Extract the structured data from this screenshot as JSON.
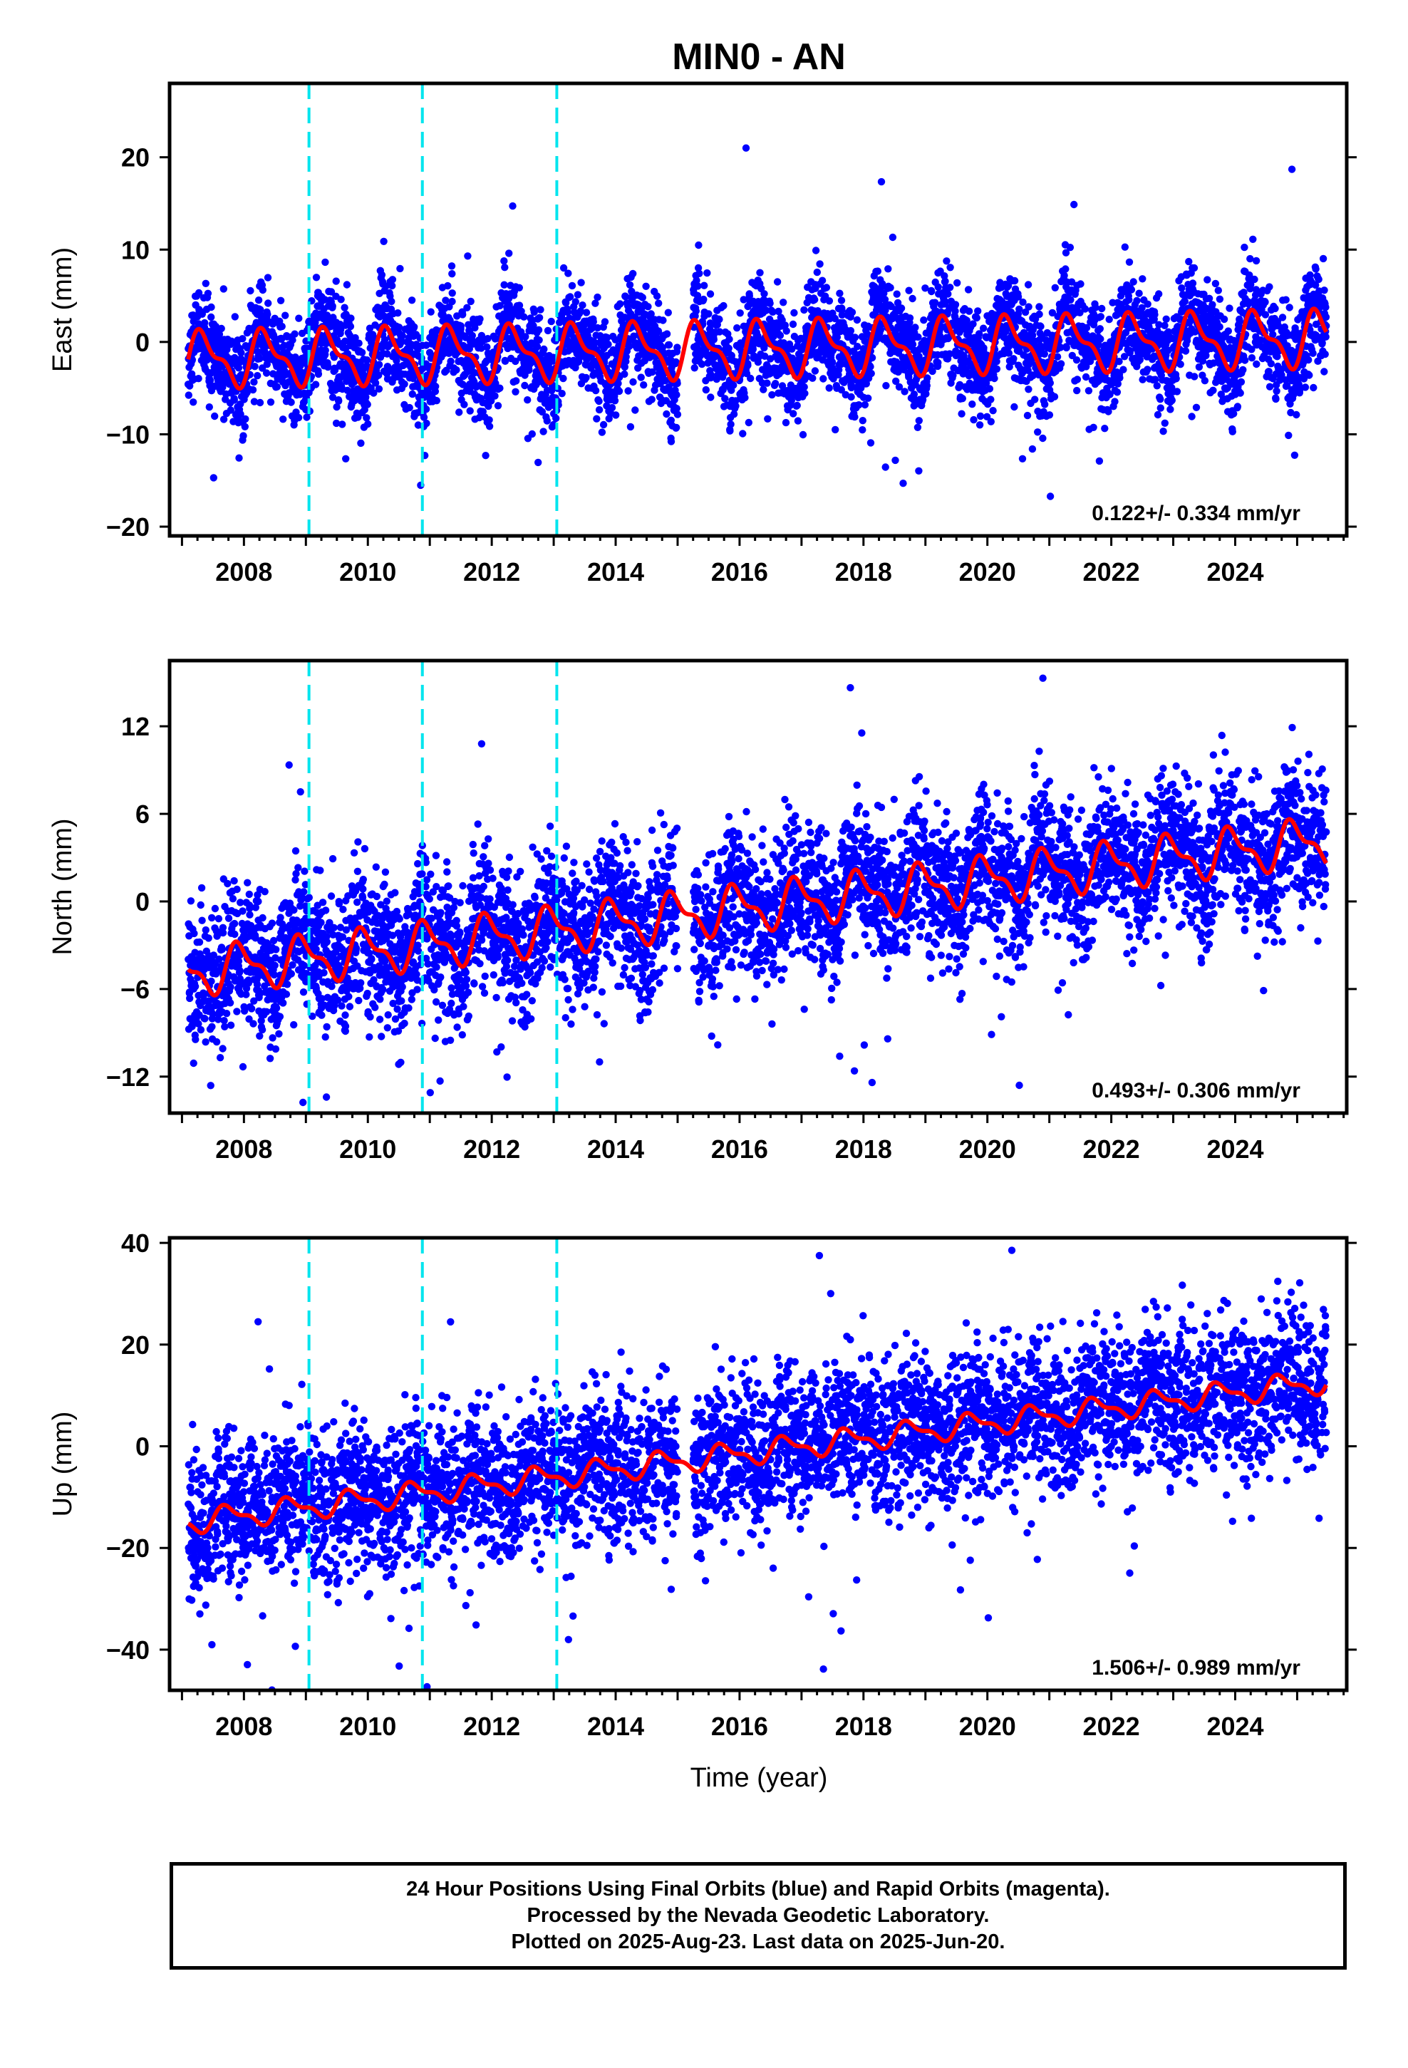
{
  "title": "MIN0 - AN",
  "xlabel": "Time (year)",
  "caption_lines": [
    "24 Hour Positions Using Final Orbits (blue) and Rapid Orbits (magenta).",
    "Processed by the Nevada Geodetic Laboratory.",
    "Plotted on 2025-Aug-23. Last data on 2025-Jun-20."
  ],
  "colors": {
    "final_orbit_points": "#0000ff",
    "model_fit": "#ff0000",
    "offset_markers": "#00e5ee",
    "frame": "#000000"
  },
  "chart_data": [
    {
      "type": "scatter",
      "component": "east",
      "ylabel": "East (mm)",
      "rate": "0.122+/- 0.334 mm/yr",
      "xlim": [
        2006.8,
        2025.8
      ],
      "ylim": [
        -21,
        28
      ],
      "xticks": [
        2008,
        2010,
        2012,
        2014,
        2016,
        2018,
        2020,
        2022,
        2024
      ],
      "yticks": [
        -20,
        -10,
        0,
        10,
        20
      ],
      "offset_lines": [
        2009.05,
        2010.88,
        2013.05
      ],
      "fit": {
        "trend_slope": 0.122,
        "mean": -0.8,
        "annual_amp": 2.6,
        "annual_phase": 0.9
      },
      "series": [
        {
          "name": "Final Orbits",
          "start": 2007.1,
          "end": 2025.47,
          "mean": 0,
          "noise_sd": 2.6
        },
        {
          "name": "Model",
          "start": 2007.1,
          "end": 2025.47
        }
      ]
    },
    {
      "type": "scatter",
      "component": "north",
      "ylabel": "North (mm)",
      "rate": "0.493+/- 0.306 mm/yr",
      "xlim": [
        2006.8,
        2025.8
      ],
      "ylim": [
        -14.5,
        16.5
      ],
      "xticks": [
        2008,
        2010,
        2012,
        2014,
        2016,
        2018,
        2020,
        2022,
        2024
      ],
      "yticks": [
        -12,
        -6,
        0,
        6,
        12
      ],
      "offset_lines": [
        2009.05,
        2010.88,
        2013.05
      ],
      "fit": {
        "trend_slope": 0.493,
        "mean": -0.5,
        "annual_amp": 1.4,
        "annual_phase": 0.3
      },
      "series": [
        {
          "name": "Final Orbits",
          "start": 2007.1,
          "end": 2025.47,
          "mean": 0,
          "noise_sd": 2.3
        },
        {
          "name": "Model",
          "start": 2007.1,
          "end": 2025.47
        }
      ]
    },
    {
      "type": "scatter",
      "component": "up",
      "ylabel": "Up (mm)",
      "rate": "1.506+/- 0.989 mm/yr",
      "xlim": [
        2006.8,
        2025.8
      ],
      "ylim": [
        -48,
        41
      ],
      "xticks": [
        2008,
        2010,
        2012,
        2014,
        2016,
        2018,
        2020,
        2022,
        2024
      ],
      "yticks": [
        -40,
        -20,
        0,
        20,
        40
      ],
      "offset_lines": [
        2009.05,
        2010.88,
        2013.05
      ],
      "fit": {
        "trend_slope": 1.506,
        "mean": -1.5,
        "annual_amp": 2.0,
        "annual_phase": 0.5
      },
      "series": [
        {
          "name": "Final Orbits",
          "start": 2007.1,
          "end": 2025.47,
          "mean": 0,
          "noise_sd": 7.0
        },
        {
          "name": "Model",
          "start": 2007.1,
          "end": 2025.47
        }
      ]
    }
  ]
}
